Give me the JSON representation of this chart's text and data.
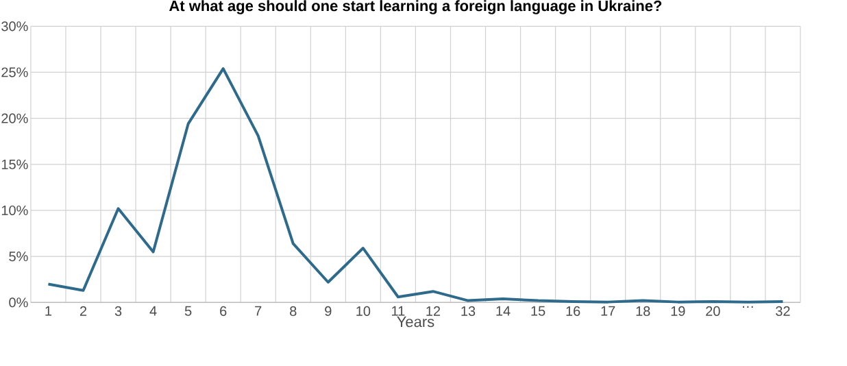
{
  "chart_data": {
    "type": "line",
    "title": "At what age should one start learning a foreign language in Ukraine?",
    "xlabel": "Years",
    "categories": [
      "1",
      "2",
      "3",
      "4",
      "5",
      "6",
      "7",
      "8",
      "9",
      "10",
      "11",
      "12",
      "13",
      "14",
      "15",
      "16",
      "17",
      "18",
      "19",
      "20",
      "…",
      "32"
    ],
    "series": [
      {
        "color": "#2e6a8c",
        "values": [
          2.0,
          1.3,
          10.2,
          5.5,
          19.4,
          25.4,
          18.1,
          6.4,
          2.2,
          5.9,
          0.6,
          1.2,
          0.2,
          0.4,
          0.2,
          0.1,
          0.05,
          0.2,
          0.05,
          0.1,
          0.05,
          0.1
        ]
      }
    ],
    "ylim": [
      0,
      30
    ],
    "yticks": [
      {
        "value": 0,
        "label": "0%"
      },
      {
        "value": 5,
        "label": "5%"
      },
      {
        "value": 10,
        "label": "10%"
      },
      {
        "value": 15,
        "label": "15%"
      },
      {
        "value": 20,
        "label": "20%"
      },
      {
        "value": 25,
        "label": "25%"
      },
      {
        "value": 30,
        "label": "30%"
      }
    ],
    "grid": true,
    "marker": "none",
    "line_style": "solid"
  }
}
